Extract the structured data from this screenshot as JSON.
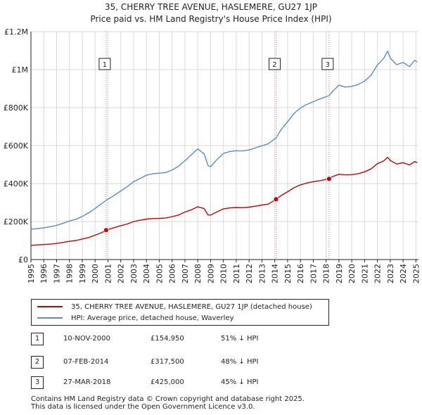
{
  "chart_data": {
    "type": "line",
    "title": [
      "35, CHERRY TREE AVENUE, HASLEMERE, GU27 1JP",
      "Price paid vs. HM Land Registry's House Price Index (HPI)"
    ],
    "y_ticks": [
      "£0",
      "£200K",
      "£400K",
      "£600K",
      "£800K",
      "£1M",
      "£1.2M"
    ],
    "y_tick_values": [
      0,
      200000,
      400000,
      600000,
      800000,
      1000000,
      1200000
    ],
    "ylim": [
      0,
      1200000
    ],
    "xlim": [
      1995.0,
      2025.2
    ],
    "x_ticks": [
      "1995",
      "1996",
      "1997",
      "1998",
      "1999",
      "2000",
      "2001",
      "2002",
      "2003",
      "2004",
      "2005",
      "2006",
      "2007",
      "2008",
      "2009",
      "2010",
      "2011",
      "2012",
      "2013",
      "2014",
      "2015",
      "2016",
      "2017",
      "2018",
      "2019",
      "2020",
      "2021",
      "2022",
      "2023",
      "2024",
      "2025"
    ],
    "grid": true,
    "series": [
      {
        "name": "35, CHERRY TREE AVENUE, HASLEMERE, GU27 1JP (detached house)",
        "color": "#cc0000",
        "x": [
          1995.0,
          1995.5,
          1996.0,
          1996.5,
          1997.0,
          1997.5,
          1998.0,
          1998.5,
          1999.0,
          1999.5,
          2000.0,
          2000.5,
          2000.86,
          2001.0,
          2001.5,
          2002.0,
          2002.5,
          2003.0,
          2003.5,
          2004.0,
          2004.5,
          2005.0,
          2005.5,
          2006.0,
          2006.5,
          2007.0,
          2007.5,
          2008.0,
          2008.5,
          2008.8,
          2009.0,
          2009.5,
          2010.0,
          2010.5,
          2011.0,
          2011.5,
          2012.0,
          2012.5,
          2013.0,
          2013.5,
          2014.1,
          2014.5,
          2015.0,
          2015.5,
          2016.0,
          2016.5,
          2017.0,
          2017.5,
          2018.23,
          2018.5,
          2019.0,
          2019.5,
          2020.0,
          2020.5,
          2021.0,
          2021.5,
          2022.0,
          2022.5,
          2022.8,
          2023.0,
          2023.5,
          2024.0,
          2024.5,
          2024.9,
          2025.1
        ],
        "values": [
          75000,
          77000,
          79000,
          81000,
          85000,
          90000,
          96000,
          100000,
          108000,
          116000,
          128000,
          141000,
          154950,
          158000,
          168000,
          178000,
          187000,
          200000,
          207000,
          213000,
          216000,
          217000,
          219000,
          226000,
          234000,
          250000,
          262000,
          278000,
          268000,
          235000,
          234000,
          251000,
          267000,
          272000,
          274000,
          273000,
          276000,
          281000,
          287000,
          292000,
          317500,
          337000,
          357000,
          378000,
          393000,
          403000,
          410000,
          415000,
          425000,
          437000,
          449000,
          446000,
          447000,
          452000,
          462000,
          477000,
          505000,
          520000,
          538000,
          522000,
          503000,
          510000,
          498000,
          516000,
          510000
        ]
      },
      {
        "name": "HPI: Average price, detached house, Waverley",
        "color": "#5b8cc6",
        "x": [
          1995.0,
          1995.5,
          1996.0,
          1996.5,
          1997.0,
          1997.5,
          1998.0,
          1998.5,
          1999.0,
          1999.5,
          2000.0,
          2000.5,
          2001.0,
          2001.5,
          2002.0,
          2002.5,
          2003.0,
          2003.5,
          2004.0,
          2004.5,
          2005.0,
          2005.5,
          2006.0,
          2006.5,
          2007.0,
          2007.5,
          2008.0,
          2008.5,
          2008.8,
          2009.0,
          2009.5,
          2010.0,
          2010.5,
          2011.0,
          2011.5,
          2012.0,
          2012.5,
          2013.0,
          2013.5,
          2014.1,
          2014.5,
          2015.0,
          2015.5,
          2016.0,
          2016.5,
          2017.0,
          2017.5,
          2018.23,
          2018.5,
          2019.0,
          2019.5,
          2020.0,
          2020.5,
          2021.0,
          2021.5,
          2022.0,
          2022.5,
          2022.8,
          2023.0,
          2023.5,
          2024.0,
          2024.5,
          2024.9,
          2025.1
        ],
        "values": [
          160000,
          163000,
          167000,
          173000,
          180000,
          191000,
          203000,
          212000,
          227000,
          246000,
          269000,
          294000,
          318000,
          338000,
          361000,
          384000,
          410000,
          427000,
          444000,
          452000,
          455000,
          458000,
          472000,
          491000,
          520000,
          552000,
          583000,
          556000,
          495000,
          489000,
          527000,
          559000,
          569000,
          573000,
          572000,
          577000,
          588000,
          599000,
          610000,
          640000,
          685000,
          726000,
          769000,
          798000,
          817000,
          831000,
          845000,
          863000,
          885000,
          918000,
          908000,
          912000,
          921000,
          940000,
          970000,
          1025000,
          1060000,
          1098000,
          1060000,
          1026000,
          1038000,
          1016000,
          1049000,
          1040000
        ]
      }
    ],
    "sales": [
      {
        "label": "1",
        "x": 2000.86,
        "value": 154950
      },
      {
        "label": "2",
        "x": 2014.1,
        "value": 317500
      },
      {
        "label": "3",
        "x": 2018.23,
        "value": 425000
      }
    ]
  },
  "legend": [
    {
      "label": "35, CHERRY TREE AVENUE, HASLEMERE, GU27 1JP (detached house)",
      "color": "#cc0000"
    },
    {
      "label": "HPI: Average price, detached house, Waverley",
      "color": "#5b8cc6"
    }
  ],
  "transactions": [
    {
      "num": "1",
      "date": "10-NOV-2000",
      "price": "£154,950",
      "hpi": "51% ↓ HPI"
    },
    {
      "num": "2",
      "date": "07-FEB-2014",
      "price": "£317,500",
      "hpi": "48% ↓ HPI"
    },
    {
      "num": "3",
      "date": "27-MAR-2018",
      "price": "£425,000",
      "hpi": "45% ↓ HPI"
    }
  ],
  "footer": {
    "line1": "Contains HM Land Registry data © Crown copyright and database right 2025.",
    "line2": "This data is licensed under the Open Government Licence v3.0."
  }
}
